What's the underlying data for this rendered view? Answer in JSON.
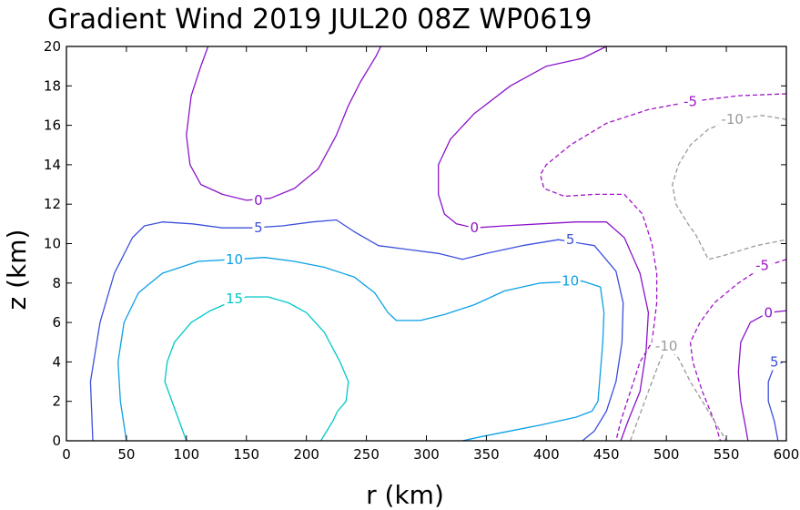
{
  "chart_data": {
    "type": "contour",
    "title": "Gradient Wind 2019 JUL20 08Z   WP0619",
    "xlabel": "r (km)",
    "ylabel": "z (km)",
    "xlim": [
      0,
      600
    ],
    "ylim": [
      0,
      20
    ],
    "xticks": [
      0,
      50,
      100,
      150,
      200,
      250,
      300,
      350,
      400,
      450,
      500,
      550,
      600
    ],
    "yticks": [
      0,
      2,
      4,
      6,
      8,
      10,
      12,
      14,
      16,
      18,
      20
    ],
    "contours": [
      {
        "id": "c15",
        "level": "15",
        "color": "#00c8c8",
        "dashed": false,
        "points": [
          [
            100,
            0
          ],
          [
            82,
            3
          ],
          [
            84,
            4
          ],
          [
            90,
            5
          ],
          [
            104,
            6
          ],
          [
            120,
            6.6
          ],
          [
            135,
            7
          ],
          [
            150,
            7.3
          ],
          [
            168,
            7.3
          ],
          [
            185,
            7
          ],
          [
            200,
            6.5
          ],
          [
            215,
            5.5
          ],
          [
            228,
            4
          ],
          [
            235,
            3
          ],
          [
            233,
            2
          ],
          [
            226,
            1.5
          ],
          [
            222,
            1
          ],
          [
            212,
            0
          ]
        ],
        "label_at": [
          140,
          7.2
        ]
      },
      {
        "id": "c10a",
        "level": "10",
        "color": "#0aa0e6",
        "dashed": false,
        "points": [
          [
            50,
            0
          ],
          [
            45,
            2
          ],
          [
            43,
            4
          ],
          [
            48,
            6
          ],
          [
            60,
            7.5
          ],
          [
            80,
            8.5
          ],
          [
            110,
            9.1
          ],
          [
            140,
            9.2
          ],
          [
            165,
            9.3
          ],
          [
            190,
            9.1
          ],
          [
            215,
            8.8
          ],
          [
            240,
            8.3
          ],
          [
            257,
            7.5
          ],
          [
            268,
            6.5
          ],
          [
            275,
            6.1
          ],
          [
            295,
            6.1
          ],
          [
            315,
            6.4
          ],
          [
            340,
            6.9
          ],
          [
            365,
            7.6
          ],
          [
            395,
            8.0
          ],
          [
            430,
            8.1
          ],
          [
            445,
            7.8
          ],
          [
            448,
            6.5
          ],
          [
            447,
            5
          ],
          [
            445,
            3.5
          ],
          [
            443,
            2
          ],
          [
            438,
            1.5
          ],
          [
            425,
            1.2
          ],
          [
            395,
            0.8
          ],
          [
            370,
            0.5
          ],
          [
            345,
            0.2
          ],
          [
            330,
            0
          ]
        ],
        "label_at": [
          140,
          9.2
        ]
      },
      {
        "id": "c10b",
        "level": "10",
        "color": "#0aa0e6",
        "dashed": false,
        "points": [],
        "label_at": [
          420,
          8.1
        ]
      },
      {
        "id": "c5a",
        "level": "5",
        "color": "#3c50dc",
        "dashed": false,
        "points": [
          [
            22,
            0
          ],
          [
            20,
            3
          ],
          [
            28,
            6
          ],
          [
            40,
            8.5
          ],
          [
            55,
            10.3
          ],
          [
            65,
            10.9
          ],
          [
            80,
            11.1
          ],
          [
            105,
            11.0
          ],
          [
            130,
            10.8
          ],
          [
            155,
            10.8
          ],
          [
            180,
            10.9
          ],
          [
            205,
            11.1
          ],
          [
            225,
            11.2
          ],
          [
            240,
            10.6
          ],
          [
            260,
            9.9
          ],
          [
            285,
            9.7
          ],
          [
            310,
            9.5
          ],
          [
            330,
            9.2
          ],
          [
            350,
            9.5
          ],
          [
            380,
            9.9
          ],
          [
            410,
            10.2
          ],
          [
            440,
            9.9
          ],
          [
            458,
            8.6
          ],
          [
            464,
            7
          ],
          [
            463,
            5
          ],
          [
            458,
            3
          ],
          [
            450,
            1.5
          ],
          [
            440,
            0.5
          ],
          [
            430,
            0
          ]
        ],
        "label_at": [
          160,
          10.8
        ]
      },
      {
        "id": "c5b",
        "level": "5",
        "color": "#3c50dc",
        "dashed": false,
        "points": [],
        "label_at": [
          420,
          10.2
        ]
      },
      {
        "id": "c5c",
        "level": "5",
        "color": "#3c50dc",
        "dashed": false,
        "points": [
          [
            597,
            4.0
          ],
          [
            590,
            3.8
          ],
          [
            585,
            3.0
          ],
          [
            585,
            2.0
          ],
          [
            590,
            1.0
          ],
          [
            593,
            0
          ]
        ],
        "label_at": [
          590,
          4.0
        ]
      },
      {
        "id": "c0a",
        "level": "0",
        "color": "#8c14c8",
        "dashed": false,
        "points": [
          [
            118,
            20
          ],
          [
            112,
            19
          ],
          [
            104,
            17.5
          ],
          [
            100,
            15.5
          ],
          [
            103,
            14
          ],
          [
            112,
            13
          ],
          [
            130,
            12.5
          ],
          [
            150,
            12.2
          ],
          [
            170,
            12.3
          ],
          [
            190,
            12.8
          ],
          [
            210,
            13.8
          ],
          [
            225,
            15.5
          ],
          [
            235,
            17
          ],
          [
            245,
            18.2
          ],
          [
            258,
            19.5
          ],
          [
            262,
            20
          ]
        ],
        "label_at": [
          160,
          12.2
        ]
      },
      {
        "id": "c0b",
        "level": "0",
        "color": "#8c14c8",
        "dashed": false,
        "points": [
          [
            450,
            20
          ],
          [
            430,
            19.4
          ],
          [
            400,
            19.0
          ],
          [
            370,
            18.0
          ],
          [
            340,
            16.6
          ],
          [
            320,
            15.3
          ],
          [
            310,
            14
          ],
          [
            310,
            12.5
          ],
          [
            315,
            11.5
          ],
          [
            325,
            11.0
          ],
          [
            340,
            10.8
          ],
          [
            365,
            10.9
          ],
          [
            395,
            11.0
          ],
          [
            425,
            11.1
          ],
          [
            450,
            11.1
          ],
          [
            465,
            10.3
          ],
          [
            478,
            8.5
          ],
          [
            485,
            6.5
          ],
          [
            483,
            4.5
          ],
          [
            478,
            2.5
          ],
          [
            468,
            1
          ],
          [
            462,
            0
          ]
        ],
        "label_at": [
          340,
          10.8
        ]
      },
      {
        "id": "c0c",
        "level": "0",
        "color": "#8c14c8",
        "dashed": false,
        "points": [
          [
            600,
            6.6
          ],
          [
            585,
            6.5
          ],
          [
            570,
            6.0
          ],
          [
            562,
            5
          ],
          [
            560,
            3.5
          ],
          [
            562,
            2
          ],
          [
            566,
            0.7
          ],
          [
            568,
            0
          ]
        ],
        "label_at": [
          585,
          6.5
        ]
      },
      {
        "id": "cm5a",
        "level": "-5",
        "color": "#a014c8",
        "dashed": true,
        "points": [
          [
            600,
            17.6
          ],
          [
            560,
            17.5
          ],
          [
            520,
            17.2
          ],
          [
            485,
            16.8
          ],
          [
            450,
            16.1
          ],
          [
            420,
            15.0
          ],
          [
            400,
            14.0
          ],
          [
            395,
            13.5
          ],
          [
            398,
            12.8
          ],
          [
            415,
            12.4
          ],
          [
            440,
            12.5
          ],
          [
            465,
            12.5
          ],
          [
            480,
            11.5
          ],
          [
            488,
            10
          ],
          [
            492,
            8.5
          ],
          [
            492,
            7
          ],
          [
            490,
            6
          ],
          [
            488,
            5
          ],
          [
            478,
            4
          ],
          [
            470,
            2.5
          ],
          [
            462,
            1
          ],
          [
            458,
            0
          ]
        ],
        "label_at": [
          520,
          17.2
        ]
      },
      {
        "id": "cm5b",
        "level": "-5",
        "color": "#a014c8",
        "dashed": true,
        "points": [
          [
            600,
            9.2
          ],
          [
            580,
            8.8
          ],
          [
            560,
            8.0
          ],
          [
            540,
            7.0
          ],
          [
            528,
            6.0
          ],
          [
            520,
            5.0
          ],
          [
            522,
            4
          ],
          [
            530,
            2.5
          ],
          [
            540,
            1
          ],
          [
            545,
            0
          ]
        ],
        "label_at": [
          580,
          8.9
        ]
      },
      {
        "id": "cm10a",
        "level": "-10",
        "color": "#9a9a9a",
        "dashed": true,
        "points": [
          [
            600,
            16.3
          ],
          [
            580,
            16.5
          ],
          [
            555,
            16.3
          ],
          [
            535,
            15.8
          ],
          [
            520,
            15.0
          ],
          [
            510,
            14.0
          ],
          [
            505,
            13.0
          ],
          [
            508,
            12.0
          ],
          [
            518,
            11.0
          ],
          [
            525,
            10.4
          ],
          [
            535,
            9.2
          ],
          [
            548,
            9.4
          ],
          [
            575,
            9.9
          ],
          [
            600,
            10.2
          ]
        ],
        "label_at": [
          555,
          16.3
        ]
      },
      {
        "id": "cm10b",
        "level": "-10",
        "color": "#9a9a9a",
        "dashed": true,
        "points": [
          [
            470,
            0
          ],
          [
            482,
            2.0
          ],
          [
            493,
            3.8
          ],
          [
            500,
            4.8
          ],
          [
            510,
            4.2
          ],
          [
            520,
            3.0
          ],
          [
            530,
            2.0
          ],
          [
            540,
            1.0
          ],
          [
            550,
            0
          ]
        ],
        "label_at": [
          500,
          4.8
        ]
      }
    ]
  }
}
